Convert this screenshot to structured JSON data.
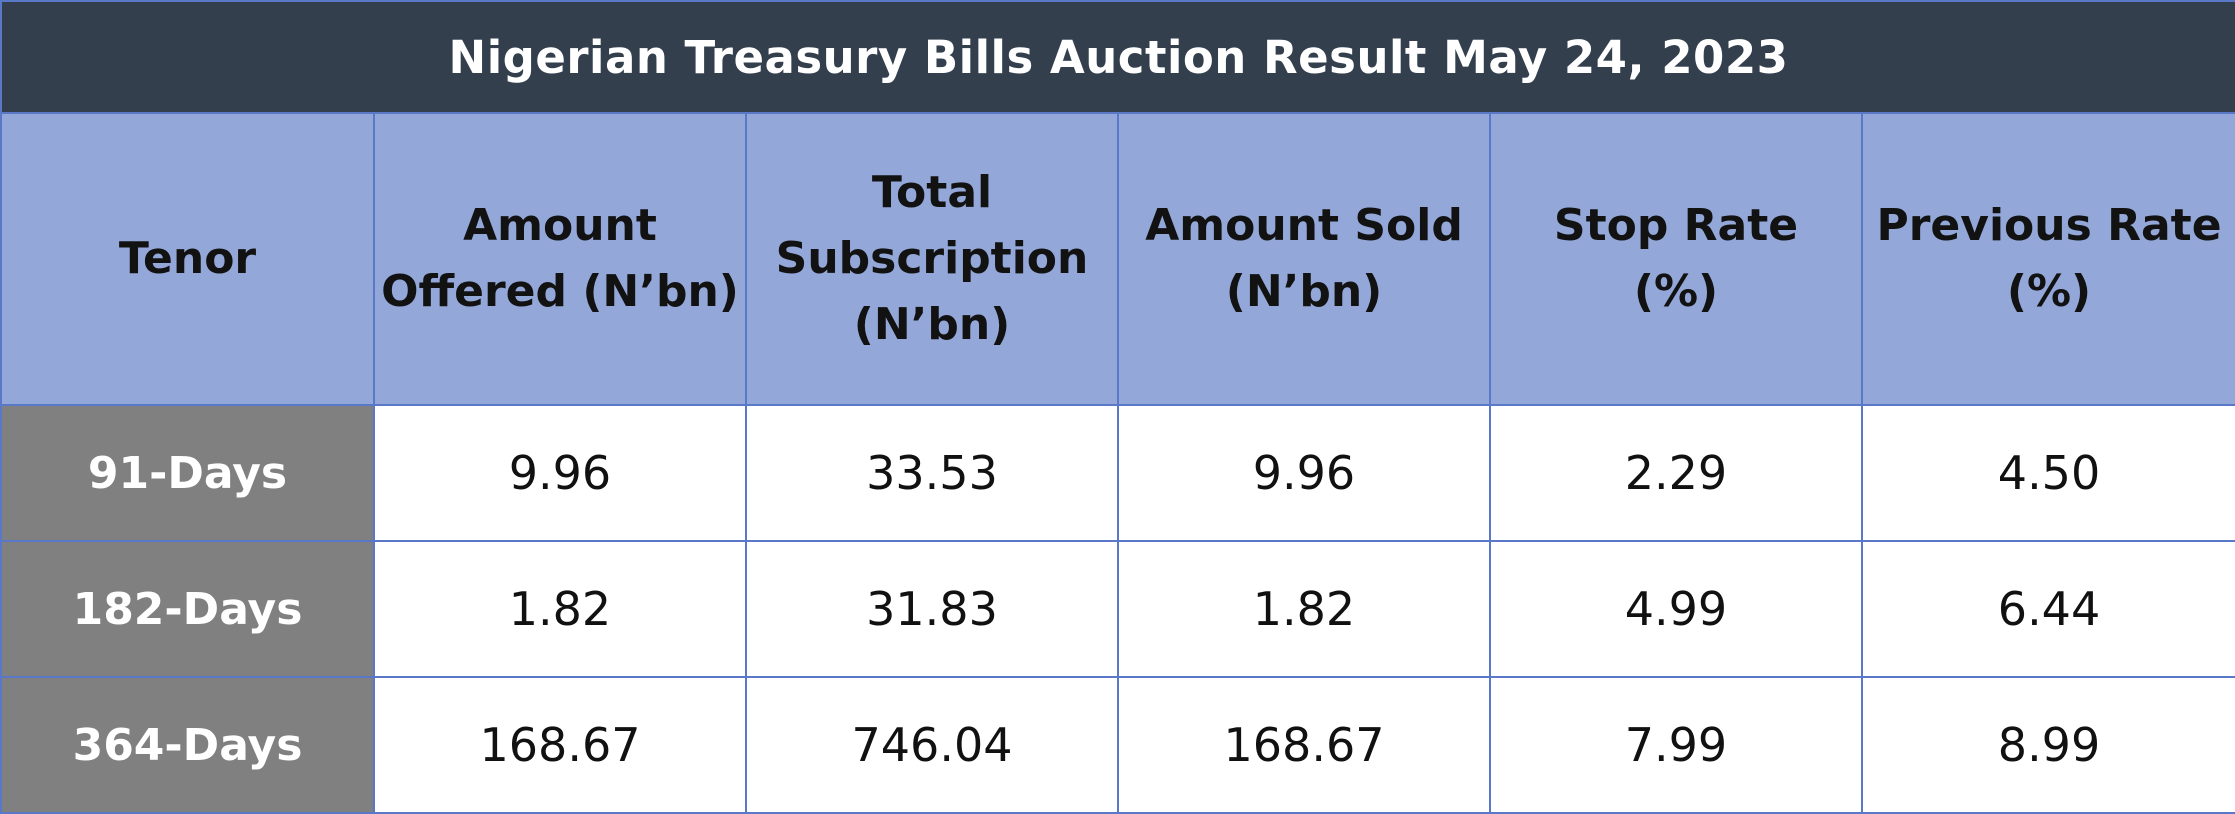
{
  "title": "Nigerian Treasury Bills Auction Result May 24, 2023",
  "columns": [
    "Tenor",
    "Amount Offered (N’bn)",
    "Total Subscription (N’bn)",
    "Amount Sold (N’bn)",
    "Stop Rate (%)",
    "Previous Rate (%)"
  ],
  "header_lines": [
    [
      "Tenor"
    ],
    [
      "Amount",
      "Offered (N’bn)"
    ],
    [
      "Total",
      "Subscription",
      "(N’bn)"
    ],
    [
      "Amount Sold",
      "(N’bn)"
    ],
    [
      "Stop Rate",
      "(%)"
    ],
    [
      "Previous Rate",
      "(%)"
    ]
  ],
  "rows": [
    [
      "91-Days",
      "9.96",
      "33.53",
      "9.96",
      "2.29",
      "4.50"
    ],
    [
      "182-Days",
      "1.82",
      "31.83",
      "1.82",
      "4.99",
      "6.44"
    ],
    [
      "364-Days",
      "168.67",
      "746.04",
      "168.67",
      "7.99",
      "8.99"
    ]
  ],
  "colors": {
    "title_bg": "#343f4e",
    "header_bg": "#93a8d9",
    "tenor_bg": "#808080",
    "border": "#5a78c8"
  },
  "chart_data": {
    "type": "table",
    "title": "Nigerian Treasury Bills Auction Result May 24, 2023",
    "columns": [
      "Tenor",
      "Amount Offered (N’bn)",
      "Total Subscription (N’bn)",
      "Amount Sold (N’bn)",
      "Stop Rate (%)",
      "Previous Rate (%)"
    ],
    "rows": [
      {
        "Tenor": "91-Days",
        "Amount Offered (N’bn)": 9.96,
        "Total Subscription (N’bn)": 33.53,
        "Amount Sold (N’bn)": 9.96,
        "Stop Rate (%)": 2.29,
        "Previous Rate (%)": 4.5
      },
      {
        "Tenor": "182-Days",
        "Amount Offered (N’bn)": 1.82,
        "Total Subscription (N’bn)": 31.83,
        "Amount Sold (N’bn)": 1.82,
        "Stop Rate (%)": 4.99,
        "Previous Rate (%)": 6.44
      },
      {
        "Tenor": "364-Days",
        "Amount Offered (N’bn)": 168.67,
        "Total Subscription (N’bn)": 746.04,
        "Amount Sold (N’bn)": 168.67,
        "Stop Rate (%)": 7.99,
        "Previous Rate (%)": 8.99
      }
    ]
  }
}
